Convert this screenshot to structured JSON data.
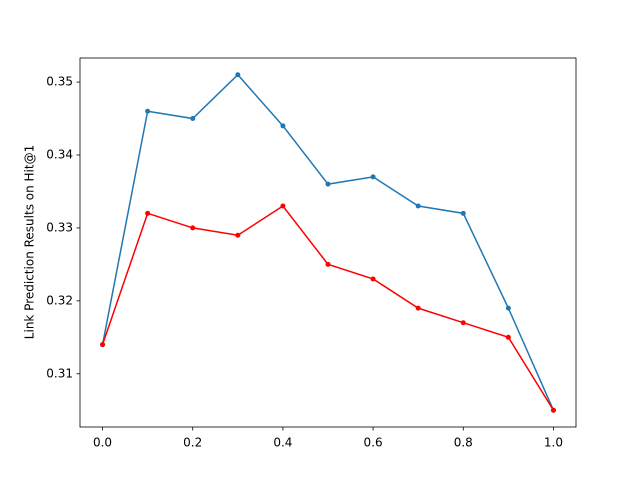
{
  "chart_data": {
    "type": "line",
    "ylabel": "Link Prediction Results on Hit@1",
    "x": [
      0,
      0.1,
      0.2,
      0.3,
      0.4,
      0.5,
      0.6,
      0.7,
      0.8,
      0.9,
      1
    ],
    "series": [
      {
        "color": "#1f77b4",
        "values": [
          0.314,
          0.346,
          0.345,
          0.351,
          0.344,
          0.336,
          0.337,
          0.333,
          0.332,
          0.319,
          0.305
        ]
      },
      {
        "color": "#ff0000",
        "values": [
          0.314,
          0.332,
          0.33,
          0.329,
          0.333,
          0.325,
          0.323,
          0.319,
          0.317,
          0.315,
          0.305
        ]
      }
    ],
    "xlim": [
      -0.05,
      1.05
    ],
    "xticks": [
      {
        "value": 0,
        "label": "0.0"
      },
      0.2,
      0.4,
      0.6,
      0.8,
      {
        "value": 1,
        "label": "1.0"
      }
    ],
    "ylim": [
      0.3027,
      0.3533
    ],
    "yticks": [
      0.31,
      0.32,
      0.33,
      0.34,
      0.35
    ],
    "grid": false
  }
}
